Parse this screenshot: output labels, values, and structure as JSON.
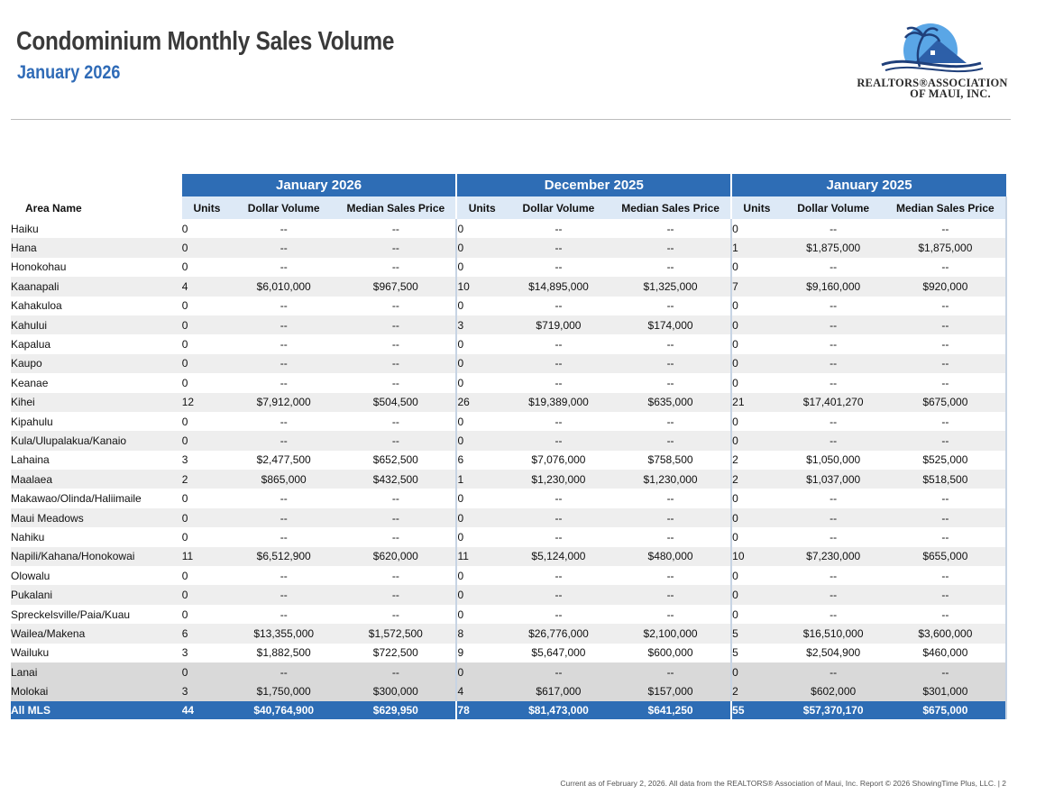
{
  "header": {
    "title": "Condominium Monthly Sales Volume",
    "subtitle": "January 2026"
  },
  "logo": {
    "line1": "REALTORS®ASSOCIATION",
    "line2": "OF MAUI, INC."
  },
  "table": {
    "periods": [
      "January 2026",
      "December 2025",
      "January 2025"
    ],
    "column_headers": {
      "area": "Area Name",
      "units": "Units",
      "dollar_volume": "Dollar Volume",
      "median_price": "Median Sales Price"
    },
    "rows": [
      {
        "area": "Haiku",
        "shade": "odd",
        "v": [
          "0",
          "--",
          "--",
          "0",
          "--",
          "--",
          "0",
          "--",
          "--"
        ]
      },
      {
        "area": "Hana",
        "shade": "even",
        "v": [
          "0",
          "--",
          "--",
          "0",
          "--",
          "--",
          "1",
          "$1,875,000",
          "$1,875,000"
        ]
      },
      {
        "area": "Honokohau",
        "shade": "odd",
        "v": [
          "0",
          "--",
          "--",
          "0",
          "--",
          "--",
          "0",
          "--",
          "--"
        ]
      },
      {
        "area": "Kaanapali",
        "shade": "even",
        "v": [
          "4",
          "$6,010,000",
          "$967,500",
          "10",
          "$14,895,000",
          "$1,325,000",
          "7",
          "$9,160,000",
          "$920,000"
        ]
      },
      {
        "area": "Kahakuloa",
        "shade": "odd",
        "v": [
          "0",
          "--",
          "--",
          "0",
          "--",
          "--",
          "0",
          "--",
          "--"
        ]
      },
      {
        "area": "Kahului",
        "shade": "even",
        "v": [
          "0",
          "--",
          "--",
          "3",
          "$719,000",
          "$174,000",
          "0",
          "--",
          "--"
        ]
      },
      {
        "area": "Kapalua",
        "shade": "odd",
        "v": [
          "0",
          "--",
          "--",
          "0",
          "--",
          "--",
          "0",
          "--",
          "--"
        ]
      },
      {
        "area": "Kaupo",
        "shade": "even",
        "v": [
          "0",
          "--",
          "--",
          "0",
          "--",
          "--",
          "0",
          "--",
          "--"
        ]
      },
      {
        "area": "Keanae",
        "shade": "odd",
        "v": [
          "0",
          "--",
          "--",
          "0",
          "--",
          "--",
          "0",
          "--",
          "--"
        ]
      },
      {
        "area": "Kihei",
        "shade": "even",
        "v": [
          "12",
          "$7,912,000",
          "$504,500",
          "26",
          "$19,389,000",
          "$635,000",
          "21",
          "$17,401,270",
          "$675,000"
        ]
      },
      {
        "area": "Kipahulu",
        "shade": "odd",
        "v": [
          "0",
          "--",
          "--",
          "0",
          "--",
          "--",
          "0",
          "--",
          "--"
        ]
      },
      {
        "area": "Kula/Ulupalakua/Kanaio",
        "shade": "even",
        "v": [
          "0",
          "--",
          "--",
          "0",
          "--",
          "--",
          "0",
          "--",
          "--"
        ]
      },
      {
        "area": "Lahaina",
        "shade": "odd",
        "v": [
          "3",
          "$2,477,500",
          "$652,500",
          "6",
          "$7,076,000",
          "$758,500",
          "2",
          "$1,050,000",
          "$525,000"
        ]
      },
      {
        "area": "Maalaea",
        "shade": "even",
        "v": [
          "2",
          "$865,000",
          "$432,500",
          "1",
          "$1,230,000",
          "$1,230,000",
          "2",
          "$1,037,000",
          "$518,500"
        ]
      },
      {
        "area": "Makawao/Olinda/Haliimaile",
        "shade": "odd",
        "v": [
          "0",
          "--",
          "--",
          "0",
          "--",
          "--",
          "0",
          "--",
          "--"
        ]
      },
      {
        "area": "Maui Meadows",
        "shade": "even",
        "v": [
          "0",
          "--",
          "--",
          "0",
          "--",
          "--",
          "0",
          "--",
          "--"
        ]
      },
      {
        "area": "Nahiku",
        "shade": "odd",
        "v": [
          "0",
          "--",
          "--",
          "0",
          "--",
          "--",
          "0",
          "--",
          "--"
        ]
      },
      {
        "area": "Napili/Kahana/Honokowai",
        "shade": "even",
        "v": [
          "11",
          "$6,512,900",
          "$620,000",
          "11",
          "$5,124,000",
          "$480,000",
          "10",
          "$7,230,000",
          "$655,000"
        ]
      },
      {
        "area": "Olowalu",
        "shade": "odd",
        "v": [
          "0",
          "--",
          "--",
          "0",
          "--",
          "--",
          "0",
          "--",
          "--"
        ]
      },
      {
        "area": "Pukalani",
        "shade": "even",
        "v": [
          "0",
          "--",
          "--",
          "0",
          "--",
          "--",
          "0",
          "--",
          "--"
        ]
      },
      {
        "area": "Spreckelsville/Paia/Kuau",
        "shade": "odd",
        "v": [
          "0",
          "--",
          "--",
          "0",
          "--",
          "--",
          "0",
          "--",
          "--"
        ]
      },
      {
        "area": "Wailea/Makena",
        "shade": "even",
        "v": [
          "6",
          "$13,355,000",
          "$1,572,500",
          "8",
          "$26,776,000",
          "$2,100,000",
          "5",
          "$16,510,000",
          "$3,600,000"
        ]
      },
      {
        "area": "Wailuku",
        "shade": "odd",
        "v": [
          "3",
          "$1,882,500",
          "$722,500",
          "9",
          "$5,647,000",
          "$600,000",
          "5",
          "$2,504,900",
          "$460,000"
        ]
      },
      {
        "area": "Lanai",
        "shade": "gray",
        "v": [
          "0",
          "--",
          "--",
          "0",
          "--",
          "--",
          "0",
          "--",
          "--"
        ]
      },
      {
        "area": "Molokai",
        "shade": "gray",
        "v": [
          "3",
          "$1,750,000",
          "$300,000",
          "4",
          "$617,000",
          "$157,000",
          "2",
          "$602,000",
          "$301,000"
        ]
      }
    ],
    "total": {
      "area": "All MLS",
      "v": [
        "44",
        "$40,764,900",
        "$629,950",
        "78",
        "$81,473,000",
        "$641,250",
        "55",
        "$57,370,170",
        "$675,000"
      ]
    }
  },
  "footer": {
    "text": "Current as of February 2, 2026. All data from the REALTORS® Association of Maui, Inc. Report © 2026 ShowingTime Plus, LLC.  |  2"
  },
  "colors": {
    "brand_blue": "#2e6db5",
    "subtitle_blue": "#2f6bb7",
    "subheader_bg": "#dde9f6"
  }
}
